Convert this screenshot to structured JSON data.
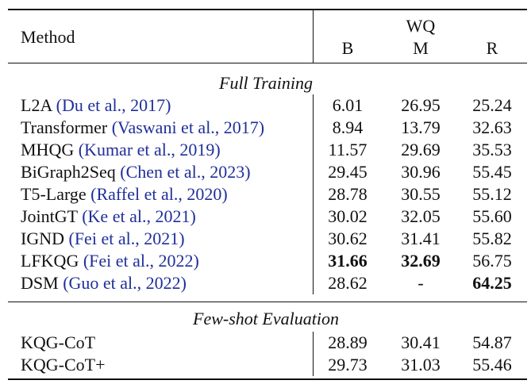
{
  "table": {
    "header": {
      "method": "Method",
      "group": "WQ",
      "columns": [
        "B",
        "M",
        "R"
      ]
    },
    "sections": [
      {
        "title": "Full Training",
        "rows": [
          {
            "method": "L2A",
            "citation": "(Du et al., 2017)",
            "scores": [
              "6.01",
              "26.95",
              "25.24"
            ],
            "bold": []
          },
          {
            "method": "Transformer",
            "citation": "(Vaswani et al., 2017)",
            "scores": [
              "8.94",
              "13.79",
              "32.63"
            ],
            "bold": []
          },
          {
            "method": "MHQG",
            "citation": "(Kumar et al., 2019)",
            "scores": [
              "11.57",
              "29.69",
              "35.53"
            ],
            "bold": []
          },
          {
            "method": "BiGraph2Seq",
            "citation": "(Chen et al., 2023)",
            "scores": [
              "29.45",
              "30.96",
              "55.45"
            ],
            "bold": []
          },
          {
            "method": "T5-Large",
            "citation": "(Raffel et al., 2020)",
            "scores": [
              "28.78",
              "30.55",
              "55.12"
            ],
            "bold": []
          },
          {
            "method": "JointGT",
            "citation": "(Ke et al., 2021)",
            "scores": [
              "30.02",
              "32.05",
              "55.60"
            ],
            "bold": []
          },
          {
            "method": "IGND",
            "citation": "(Fei et al., 2021)",
            "scores": [
              "30.62",
              "31.41",
              "55.82"
            ],
            "bold": []
          },
          {
            "method": "LFKQG",
            "citation": "(Fei et al., 2022)",
            "scores": [
              "31.66",
              "32.69",
              "56.75"
            ],
            "bold": [
              0,
              1
            ]
          },
          {
            "method": "DSM",
            "citation": "(Guo et al., 2022)",
            "scores": [
              "28.62",
              "-",
              "64.25"
            ],
            "bold": [
              2
            ]
          }
        ]
      },
      {
        "title": "Few-shot Evaluation",
        "rows": [
          {
            "method": "KQG-CoT",
            "citation": null,
            "scores": [
              "28.89",
              "30.41",
              "54.87"
            ],
            "bold": []
          },
          {
            "method": "KQG-CoT+",
            "citation": null,
            "scores": [
              "29.73",
              "31.03",
              "55.46"
            ],
            "bold": []
          }
        ]
      }
    ]
  }
}
